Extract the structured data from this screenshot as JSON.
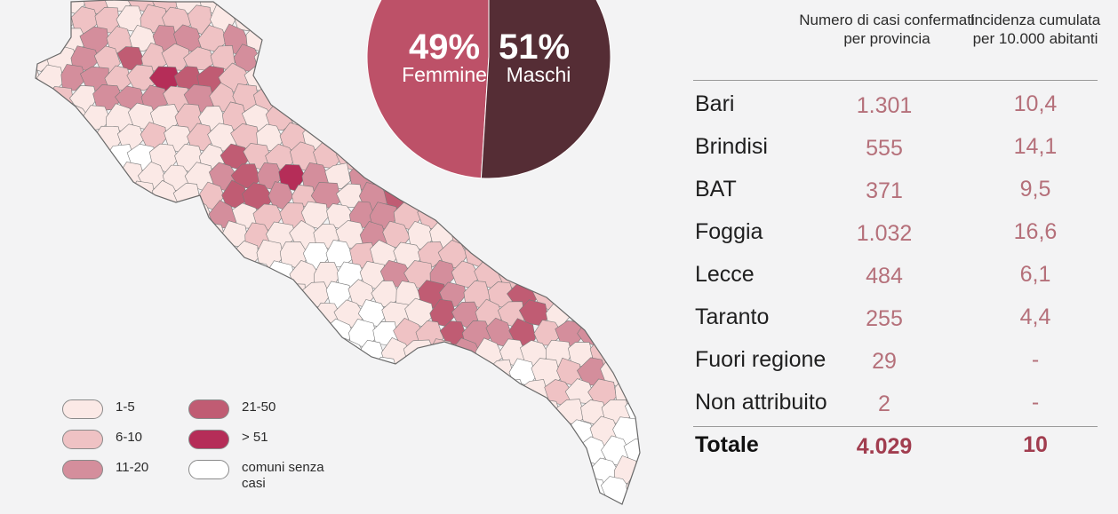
{
  "colors": {
    "bin_1_5": "#fbe9e6",
    "bin_6_10": "#efc2c4",
    "bin_11_20": "#d48e9c",
    "bin_21_50": "#c05c73",
    "bin_51_plus": "#b52d58",
    "no_cases": "#ffffff",
    "female": "#bd5168",
    "male": "#552d35",
    "number_text": "#b5707a",
    "total_text": "#a13d4f"
  },
  "pie": {
    "female": {
      "percent_label": "49%",
      "label": "Femmine",
      "value": 49
    },
    "male": {
      "percent_label": "51%",
      "label": "Maschi",
      "value": 51
    }
  },
  "legend": [
    {
      "label": "1-5",
      "color_key": "bin_1_5"
    },
    {
      "label": "6-10",
      "color_key": "bin_6_10"
    },
    {
      "label": "11-20",
      "color_key": "bin_11_20"
    },
    {
      "label": "21-50",
      "color_key": "bin_21_50"
    },
    {
      "label": "> 51",
      "color_key": "bin_51_plus"
    },
    {
      "label": "comuni senza casi",
      "color_key": "no_cases"
    }
  ],
  "table": {
    "headers": {
      "cases": "Numero di casi confermati per provincia",
      "incidence": "Incidenza cumulata per 10.000 abitanti"
    },
    "rows": [
      {
        "name": "Bari",
        "cases": "1.301",
        "incidence": "10,4"
      },
      {
        "name": "Brindisi",
        "cases": "555",
        "incidence": "14,1"
      },
      {
        "name": "BAT",
        "cases": "371",
        "incidence": "9,5"
      },
      {
        "name": "Foggia",
        "cases": "1.032",
        "incidence": "16,6"
      },
      {
        "name": "Lecce",
        "cases": "484",
        "incidence": "6,1"
      },
      {
        "name": "Taranto",
        "cases": "255",
        "incidence": "4,4"
      },
      {
        "name": "Fuori regione",
        "cases": "29",
        "incidence": "-"
      },
      {
        "name": "Non attribuito",
        "cases": "2",
        "incidence": "-"
      }
    ],
    "total": {
      "name": "Totale",
      "cases": "4.029",
      "incidence": "10"
    }
  }
}
